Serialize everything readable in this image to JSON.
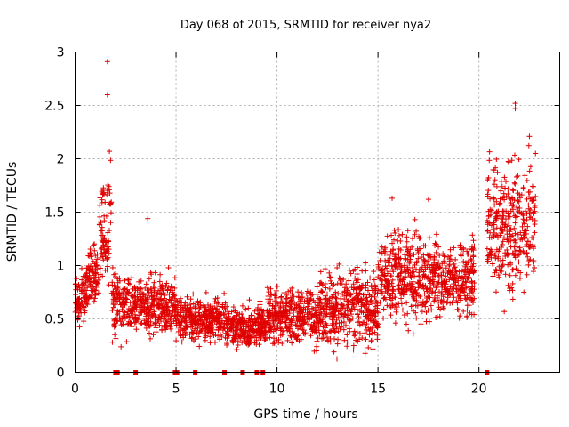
{
  "chart_data": {
    "type": "scatter",
    "title": "Day 068 of 2015, SRMTID for receiver nya2",
    "xlabel": "GPS time / hours",
    "ylabel": "SRMTID / TECUs",
    "xlim": [
      0,
      24
    ],
    "ylim": [
      0,
      3
    ],
    "xticks": [
      0,
      5,
      10,
      15,
      20
    ],
    "xtick_labels": [
      "0",
      "5",
      "10",
      "15",
      "20"
    ],
    "yticks": [
      0,
      0.5,
      1,
      1.5,
      2,
      2.5,
      3
    ],
    "ytick_labels": [
      "0",
      "0.5",
      "1",
      "1.5",
      "2",
      "2.5",
      "3"
    ],
    "grid": true,
    "marker": "plus",
    "color": "#e00000",
    "zero_value_times": [
      2.0,
      2.1,
      3.0,
      4.95,
      5.05,
      5.95,
      7.4,
      8.3,
      9.0,
      9.3,
      20.4
    ],
    "envelope": [
      {
        "t_start": 0.0,
        "t_end": 0.5,
        "y_low": 0.3,
        "y_high": 1.1
      },
      {
        "t_start": 0.5,
        "t_end": 1.2,
        "y_low": 0.5,
        "y_high": 1.3
      },
      {
        "t_start": 1.2,
        "t_end": 1.8,
        "y_low": 0.6,
        "y_high": 2.1
      },
      {
        "t_start": 1.8,
        "t_end": 2.5,
        "y_low": 0.2,
        "y_high": 1.1
      },
      {
        "t_start": 2.5,
        "t_end": 5.0,
        "y_low": 0.25,
        "y_high": 1.0
      },
      {
        "t_start": 5.0,
        "t_end": 7.5,
        "y_low": 0.2,
        "y_high": 0.8
      },
      {
        "t_start": 7.5,
        "t_end": 9.5,
        "y_low": 0.15,
        "y_high": 0.7
      },
      {
        "t_start": 9.5,
        "t_end": 12.0,
        "y_low": 0.15,
        "y_high": 0.9
      },
      {
        "t_start": 12.0,
        "t_end": 15.0,
        "y_low": 0.1,
        "y_high": 1.1
      },
      {
        "t_start": 15.0,
        "t_end": 17.5,
        "y_low": 0.3,
        "y_high": 1.5
      },
      {
        "t_start": 17.5,
        "t_end": 19.8,
        "y_low": 0.4,
        "y_high": 1.4
      },
      {
        "t_start": 20.4,
        "t_end": 22.8,
        "y_low": 0.5,
        "y_high": 2.2
      }
    ],
    "peaks": [
      {
        "t": 1.6,
        "value": 2.91
      },
      {
        "t": 1.6,
        "value": 2.6
      },
      {
        "t": 1.7,
        "value": 2.07
      },
      {
        "t": 3.6,
        "value": 1.44
      },
      {
        "t": 15.7,
        "value": 1.63
      },
      {
        "t": 17.5,
        "value": 1.62
      },
      {
        "t": 21.8,
        "value": 2.52
      },
      {
        "t": 21.8,
        "value": 2.47
      },
      {
        "t": 22.5,
        "value": 2.21
      },
      {
        "t": 22.8,
        "value": 2.05
      }
    ]
  }
}
